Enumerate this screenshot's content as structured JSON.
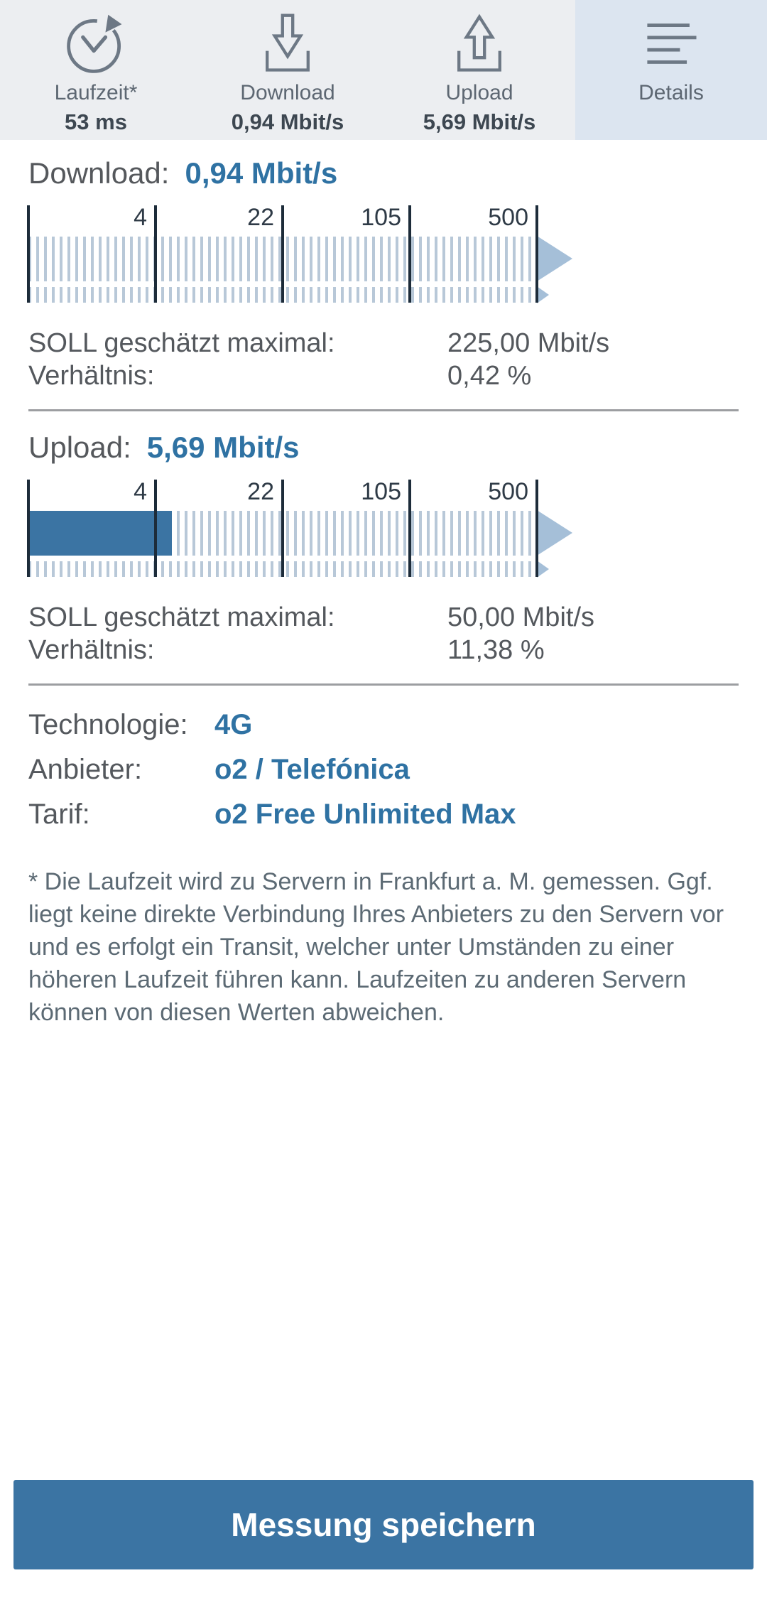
{
  "tabbar": {
    "tabs": [
      {
        "label": "Laufzeit*",
        "value": "53 ms",
        "selected": false
      },
      {
        "label": "Download",
        "value": "0,94 Mbit/s",
        "selected": false
      },
      {
        "label": "Upload",
        "value": "5,69 Mbit/s",
        "selected": false
      },
      {
        "label": "Details",
        "value": "",
        "selected": true
      }
    ]
  },
  "download": {
    "label": "Download:",
    "value": "0,94 Mbit/s",
    "gauge": {
      "ticks": [
        "4",
        "22",
        "105",
        "500"
      ],
      "fill_percent": 0,
      "measured_mbits": 0.94
    },
    "rows": [
      {
        "label": "SOLL geschätzt maximal:",
        "value": "225,00 Mbit/s"
      },
      {
        "label": "Verhältnis:",
        "value": "0,42 %"
      }
    ]
  },
  "upload": {
    "label": "Upload:",
    "value": "5,69 Mbit/s",
    "gauge": {
      "ticks": [
        "4",
        "22",
        "105",
        "500"
      ],
      "fill_percent": 28.2,
      "measured_mbits": 5.69
    },
    "rows": [
      {
        "label": "SOLL geschätzt maximal:",
        "value": "50,00 Mbit/s"
      },
      {
        "label": "Verhältnis:",
        "value": "11,38 %"
      }
    ]
  },
  "connection": {
    "rows": [
      {
        "label": "Technologie:",
        "value": "4G"
      },
      {
        "label": "Anbieter:",
        "value": "o2 / Telefónica"
      },
      {
        "label": "Tarif:",
        "value": "o2 Free Unlimited Max"
      }
    ]
  },
  "footnote": "* Die Laufzeit wird zu Servern in Frankfurt a. M. gemessen. Ggf. liegt keine direkte Verbindung Ihres Anbieters zu den Servern vor und es erfolgt ein Transit, welcher unter Umständen zu einer höheren Laufzeit führen kann. Laufzeiten zu anderen Servern können von diesen Werten abweichen.",
  "button": {
    "label": "Messung speichern"
  },
  "colors": {
    "accent_blue": "#2f72a3",
    "fill_blue": "#3b74a3",
    "arrow_blue": "#a5bfd8",
    "stripe_blue": "#b8c8d8",
    "tick_dark": "#1d2c3a",
    "tab_bg": "#eceef1",
    "tab_selected_bg": "#dce5f0",
    "icon_gray": "#6d7885",
    "divider_gray": "#9c9ea1"
  }
}
